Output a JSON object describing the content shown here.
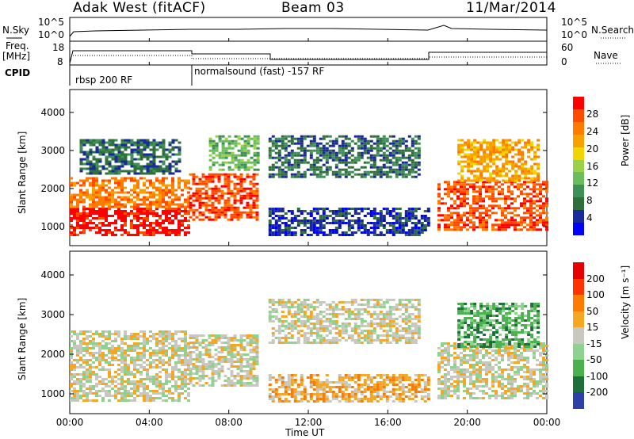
{
  "header": {
    "station": "Adak West (fitACF)",
    "beam": "Beam 03",
    "date": "11/Mar/2014"
  },
  "top_panel": {
    "nsky_label": "N.Sky",
    "nsky_ticks": [
      "10^5",
      "10^0"
    ],
    "nsearch_label": "N.Search",
    "nsearch_ticks": [
      "10^5",
      "10^0"
    ],
    "freq_label_line1": "Freq.",
    "freq_label_line2": "[MHz]",
    "freq_ticks": [
      "18",
      "8"
    ],
    "nave_label": "Nave",
    "nave_ticks": [
      "60",
      "0"
    ],
    "cpid_label": "CPID",
    "cpid_segments": [
      {
        "text": "rbsp 200 RF",
        "start_hour": 0
      },
      {
        "text": "normalsound (fast) -157 RF",
        "start_hour": 6
      }
    ]
  },
  "chart_data": [
    {
      "type": "heatmap",
      "name": "power",
      "ylabel": "Slant Range [km]",
      "yticks": [
        "4000",
        "3000",
        "2000",
        "1000"
      ],
      "ylim": [
        500,
        4600
      ],
      "xlim": [
        0,
        24
      ],
      "colorbar_label": "Power [dB]",
      "colorbar_ticks": [
        "28",
        "24",
        "20",
        "16",
        "12",
        "8",
        "4"
      ],
      "colors": [
        "#0000ff",
        "#1a2a9c",
        "#2f6f3a",
        "#3e8f58",
        "#6cbb5c",
        "#9bd14a",
        "#f2d400",
        "#f7a100",
        "#ff7b00",
        "#ff4b00",
        "#ff0000"
      ],
      "regions": [
        {
          "t0": 0.0,
          "t1": 6.0,
          "r0": 800,
          "r1": 1500,
          "cls": 10
        },
        {
          "t0": 0.0,
          "t1": 6.0,
          "r0": 1500,
          "r1": 2300,
          "cls": 8
        },
        {
          "t0": 6.0,
          "t1": 9.5,
          "r0": 1200,
          "r1": 2400,
          "cls": 9
        },
        {
          "t0": 0.5,
          "t1": 5.5,
          "r0": 2400,
          "r1": 3300,
          "cls": 2
        },
        {
          "t0": 7.0,
          "t1": 9.5,
          "r0": 2500,
          "r1": 3400,
          "cls": 4
        },
        {
          "t0": 10.0,
          "t1": 17.5,
          "r0": 2300,
          "r1": 3400,
          "cls": 2
        },
        {
          "t0": 10.0,
          "t1": 18.0,
          "r0": 800,
          "r1": 1500,
          "cls": 1
        },
        {
          "t0": 18.5,
          "t1": 24.0,
          "r0": 900,
          "r1": 2200,
          "cls": 9
        },
        {
          "t0": 19.5,
          "t1": 23.5,
          "r0": 2200,
          "r1": 3300,
          "cls": 7
        }
      ]
    },
    {
      "type": "heatmap",
      "name": "velocity",
      "ylabel": "Slant Range [km]",
      "yticks": [
        "4000",
        "3000",
        "2000",
        "1000"
      ],
      "ylim": [
        500,
        4600
      ],
      "xlim": [
        0,
        24
      ],
      "xlabel": "Time UT",
      "xticks": [
        "00:00",
        "04:00",
        "08:00",
        "12:00",
        "16:00",
        "20:00",
        "00:00"
      ],
      "colorbar_label": "Velocity [m s⁻¹]",
      "colorbar_ticks": [
        "200",
        "100",
        "50",
        "15",
        "-15",
        "-50",
        "-100",
        "-200"
      ],
      "colors": [
        "#2f3faa",
        "#1f6f3a",
        "#4caf50",
        "#8fd18f",
        "#c8c8c0",
        "#f5a623",
        "#ff7b00",
        "#ff3300",
        "#e60000"
      ],
      "regions": [
        {
          "t0": 0.0,
          "t1": 6.0,
          "r0": 800,
          "r1": 2600,
          "cls": 4
        },
        {
          "t0": 6.0,
          "t1": 9.5,
          "r0": 1200,
          "r1": 2500,
          "cls": 4
        },
        {
          "t0": 10.0,
          "t1": 17.5,
          "r0": 2300,
          "r1": 3400,
          "cls": 4
        },
        {
          "t0": 10.0,
          "t1": 18.0,
          "r0": 800,
          "r1": 1500,
          "cls": 5
        },
        {
          "t0": 18.5,
          "t1": 24.0,
          "r0": 900,
          "r1": 2300,
          "cls": 4
        },
        {
          "t0": 19.5,
          "t1": 23.5,
          "r0": 2200,
          "r1": 3300,
          "cls": 2
        }
      ]
    }
  ]
}
